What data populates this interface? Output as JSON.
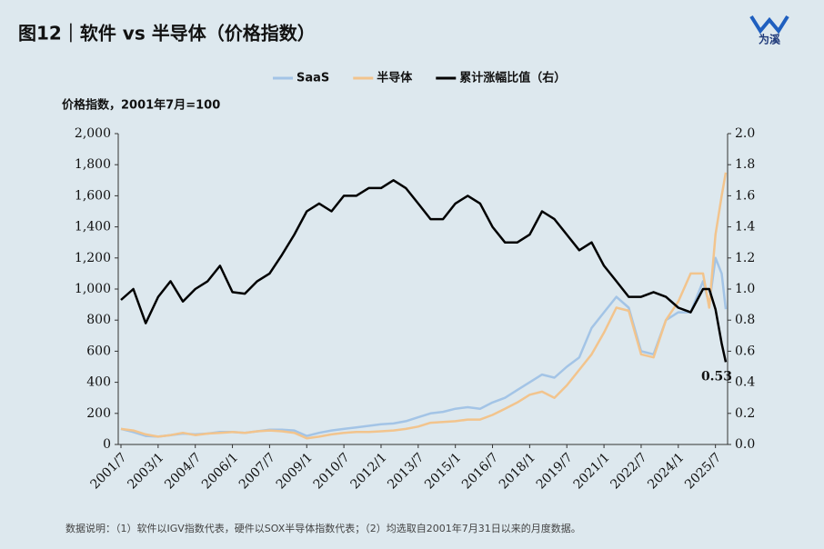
{
  "chart_data": {
    "type": "line",
    "title": "图12｜软件 vs 半导体（价格指数）",
    "y_label": "价格指数，2001年7月=100",
    "footnote": "数据说明：（1）软件以IGV指数代表，硬件以SOX半导体指数代表；（2）均选取自2001年7月31日以来的月度数据。",
    "logo": "为溪",
    "legend_position": "top",
    "x": [
      "2001/7",
      "2002/1",
      "2002/7",
      "2003/1",
      "2003/7",
      "2004/1",
      "2004/7",
      "2005/1",
      "2005/7",
      "2006/1",
      "2006/7",
      "2007/1",
      "2007/7",
      "2008/1",
      "2008/7",
      "2009/1",
      "2009/7",
      "2010/1",
      "2010/7",
      "2011/1",
      "2011/7",
      "2012/1",
      "2012/7",
      "2013/1",
      "2013/7",
      "2014/1",
      "2014/7",
      "2015/1",
      "2015/7",
      "2016/1",
      "2016/7",
      "2017/1",
      "2017/7",
      "2018/1",
      "2018/7",
      "2019/1",
      "2019/7",
      "2020/1",
      "2020/7",
      "2021/1",
      "2021/7",
      "2022/1",
      "2022/7",
      "2023/1",
      "2023/7",
      "2024/1",
      "2024/7",
      "2025/1",
      "2025/4",
      "2025/7",
      "2025/10",
      "2025/12"
    ],
    "xticks": [
      "2001/7",
      "2003/1",
      "2004/7",
      "2006/1",
      "2007/7",
      "2009/1",
      "2010/7",
      "2012/1",
      "2013/7",
      "2015/1",
      "2016/7",
      "2018/1",
      "2019/7",
      "2021/1",
      "2022/7",
      "2024/1",
      "2025/7"
    ],
    "series": [
      {
        "name": "SaaS",
        "color": "#a3c4e6",
        "values": [
          100,
          80,
          55,
          50,
          60,
          70,
          65,
          70,
          80,
          80,
          75,
          85,
          95,
          95,
          90,
          55,
          75,
          90,
          100,
          110,
          120,
          130,
          135,
          150,
          175,
          200,
          210,
          230,
          240,
          230,
          270,
          300,
          350,
          400,
          450,
          430,
          500,
          560,
          750,
          850,
          950,
          880,
          600,
          580,
          800,
          850,
          850,
          1050,
          900,
          1200,
          1100,
          870
        ]
      },
      {
        "name": "半导体",
        "color": "#f2c48d",
        "values": [
          100,
          90,
          65,
          50,
          60,
          75,
          60,
          70,
          75,
          80,
          75,
          85,
          90,
          85,
          75,
          40,
          50,
          65,
          75,
          80,
          80,
          85,
          90,
          100,
          115,
          140,
          145,
          150,
          160,
          160,
          190,
          230,
          270,
          320,
          340,
          300,
          380,
          480,
          580,
          720,
          880,
          860,
          580,
          560,
          800,
          920,
          1100,
          1100,
          880,
          1350,
          1600,
          1750
        ]
      },
      {
        "name": "累计涨幅比值（右）",
        "color": "#000000",
        "axis": "y2",
        "values": [
          0.93,
          1.0,
          0.78,
          0.95,
          1.05,
          0.92,
          1.0,
          1.05,
          1.15,
          0.98,
          0.97,
          1.05,
          1.1,
          1.22,
          1.35,
          1.5,
          1.55,
          1.5,
          1.6,
          1.6,
          1.65,
          1.65,
          1.7,
          1.65,
          1.55,
          1.45,
          1.45,
          1.55,
          1.6,
          1.55,
          1.4,
          1.3,
          1.3,
          1.35,
          1.5,
          1.45,
          1.35,
          1.25,
          1.3,
          1.15,
          1.05,
          0.95,
          0.95,
          0.98,
          0.95,
          0.88,
          0.85,
          1.0,
          1.0,
          0.87,
          0.65,
          0.53
        ]
      }
    ],
    "annotations": [
      {
        "x": "2025/12",
        "value": 0.53
      }
    ],
    "ylim": [
      0,
      2000
    ],
    "yticks": [
      0,
      200,
      400,
      600,
      800,
      {
        "value": 1000,
        "label": "1,000"
      },
      {
        "value": 1200,
        "label": "1,200"
      },
      {
        "value": 1400,
        "label": "1,400"
      },
      {
        "value": 1600,
        "label": "1,600"
      },
      {
        "value": 1800,
        "label": "1,800"
      },
      {
        "value": 2000,
        "label": "2,000"
      }
    ],
    "y2lim": [
      0,
      2
    ],
    "y2ticks": [
      {
        "value": 0,
        "label": "0.0"
      },
      0.2,
      0.4,
      0.6,
      0.8,
      {
        "value": 1,
        "label": "1.0"
      },
      1.2,
      1.4,
      1.6,
      1.8,
      {
        "value": 2,
        "label": "2.0"
      }
    ],
    "grid": false
  }
}
